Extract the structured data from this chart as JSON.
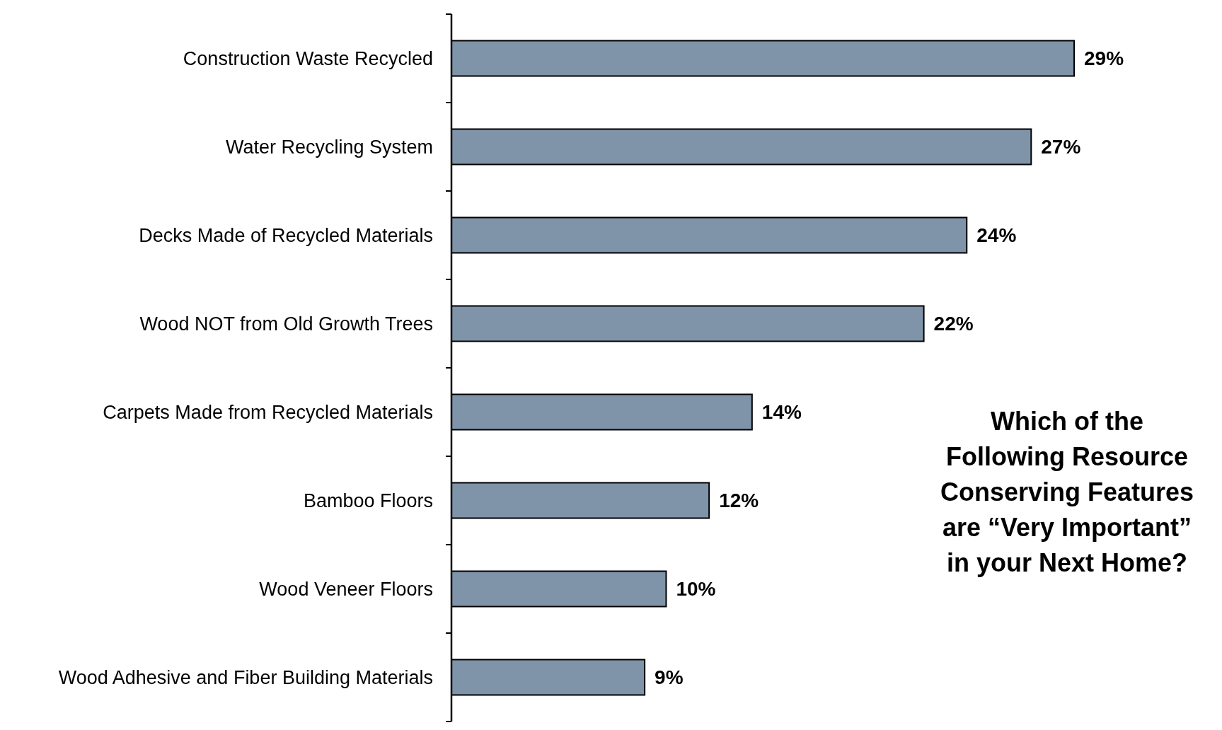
{
  "chart_data": {
    "type": "bar",
    "orientation": "horizontal",
    "title": "Which of the Following Resource Conserving Features are “Very Important” in your Next Home?",
    "categories": [
      "Construction Waste Recycled",
      "Water Recycling System",
      "Decks Made of Recycled Materials",
      "Wood NOT from Old Growth Trees",
      "Carpets Made from Recycled Materials",
      "Bamboo Floors",
      "Wood Veneer Floors",
      "Wood Adhesive and Fiber Building Materials"
    ],
    "values": [
      29,
      27,
      24,
      22,
      14,
      12,
      10,
      9
    ],
    "value_labels": [
      "29%",
      "27%",
      "24%",
      "22%",
      "14%",
      "12%",
      "10%",
      "9%"
    ],
    "color": "#7f93a9"
  }
}
